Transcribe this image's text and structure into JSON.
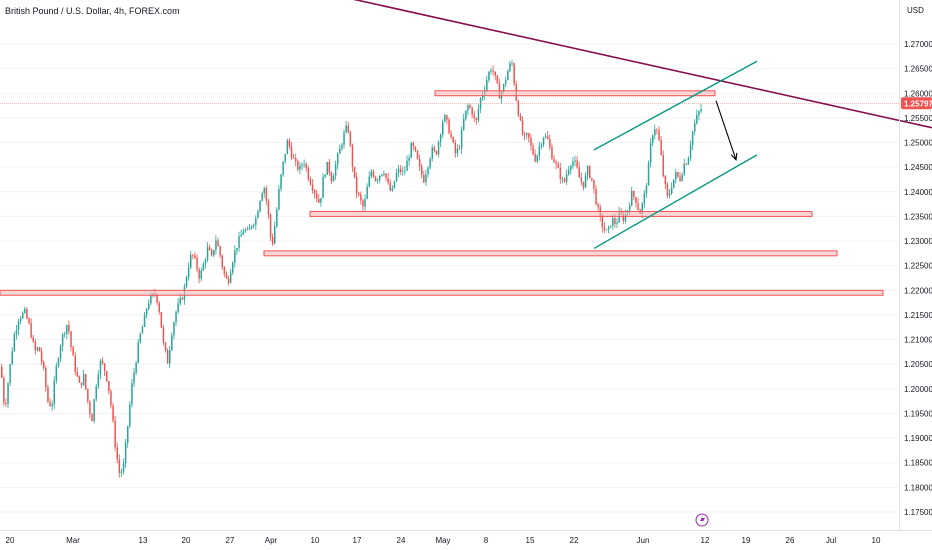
{
  "header": {
    "title": "British Pound / U.S. Dollar, 4h, FOREX.com",
    "currency": "USD"
  },
  "colors": {
    "up": "#26a69a",
    "down": "#ef5350",
    "trendline": "#880e4f",
    "channel": "#089981",
    "zone_fill": "#f7b4b4",
    "zone_stroke": "#ef5350",
    "arrow": "#000000",
    "price_tag": "#ef5350",
    "gridline": "#f0f3fa",
    "flash_icon": "#9c27b0"
  },
  "icons": {
    "event_marker": "lightning-bolt-icon"
  },
  "chart_data": {
    "type": "candlestick",
    "title": "British Pound / U.S. Dollar, 4h, FOREX.com",
    "ylabel": "USD",
    "ylim": [
      1.1725,
      1.2775
    ],
    "x_tick_labels": [
      "20",
      "Mar",
      "13",
      "20",
      "27",
      "Apr",
      "10",
      "17",
      "24",
      "May",
      "8",
      "15",
      "22",
      "Jun",
      "12",
      "19",
      "26",
      "Jul",
      "10"
    ],
    "y_tick_labels": [
      "1.27000",
      "1.26500",
      "1.26000",
      "1.25500",
      "1.25000",
      "1.24500",
      "1.24000",
      "1.23500",
      "1.23000",
      "1.22500",
      "1.22000",
      "1.21500",
      "1.21000",
      "1.20500",
      "1.20000",
      "1.19500",
      "1.19000",
      "1.18500",
      "1.18000",
      "1.17500"
    ],
    "y_ticks": [
      1.27,
      1.265,
      1.26,
      1.255,
      1.25,
      1.245,
      1.24,
      1.235,
      1.23,
      1.225,
      1.22,
      1.215,
      1.21,
      1.205,
      1.2,
      1.195,
      1.19,
      1.185,
      1.18,
      1.175
    ],
    "current_price": "1.25797",
    "close_path": [
      [
        0,
        1.2045
      ],
      [
        4,
        1.1955
      ],
      [
        8,
        1.2025
      ],
      [
        13,
        1.2105
      ],
      [
        18,
        1.2145
      ],
      [
        24,
        1.2155
      ],
      [
        29,
        1.2125
      ],
      [
        34,
        1.2075
      ],
      [
        38,
        1.2085
      ],
      [
        43,
        1.2035
      ],
      [
        47,
        1.1975
      ],
      [
        51,
        1.1965
      ],
      [
        55,
        1.2035
      ],
      [
        59,
        1.2085
      ],
      [
        63,
        1.2115
      ],
      [
        67,
        1.2135
      ],
      [
        71,
        1.2075
      ],
      [
        75,
        1.2035
      ],
      [
        79,
        1.2005
      ],
      [
        83,
        1.2025
      ],
      [
        87,
        1.1975
      ],
      [
        91,
        1.1935
      ],
      [
        95,
        1.2005
      ],
      [
        99,
        1.2055
      ],
      [
        103,
        1.2045
      ],
      [
        107,
        1.2015
      ],
      [
        111,
        1.1955
      ],
      [
        115,
        1.1875
      ],
      [
        119,
        1.1825
      ],
      [
        123,
        1.1845
      ],
      [
        127,
        1.1925
      ],
      [
        131,
        1.2005
      ],
      [
        135,
        1.2055
      ],
      [
        139,
        1.2105
      ],
      [
        143,
        1.2135
      ],
      [
        147,
        1.2175
      ],
      [
        151,
        1.2185
      ],
      [
        155,
        1.2195
      ],
      [
        159,
        1.2155
      ],
      [
        163,
        1.2085
      ],
      [
        167,
        1.2055
      ],
      [
        171,
        1.2115
      ],
      [
        175,
        1.2155
      ],
      [
        179,
        1.2175
      ],
      [
        183,
        1.2195
      ],
      [
        187,
        1.2245
      ],
      [
        191,
        1.2275
      ],
      [
        195,
        1.2255
      ],
      [
        199,
        1.2225
      ],
      [
        203,
        1.2255
      ],
      [
        207,
        1.2285
      ],
      [
        211,
        1.2265
      ],
      [
        215,
        1.2305
      ],
      [
        219,
        1.2275
      ],
      [
        223,
        1.2235
      ],
      [
        227,
        1.2215
      ],
      [
        231,
        1.2255
      ],
      [
        235,
        1.2285
      ],
      [
        239,
        1.2305
      ],
      [
        243,
        1.2325
      ],
      [
        247,
        1.2315
      ],
      [
        251,
        1.2335
      ],
      [
        255,
        1.2345
      ],
      [
        259,
        1.2385
      ],
      [
        263,
        1.2415
      ],
      [
        267,
        1.2365
      ],
      [
        271,
        1.2285
      ],
      [
        275,
        1.2345
      ],
      [
        279,
        1.2415
      ],
      [
        283,
        1.2465
      ],
      [
        287,
        1.2505
      ],
      [
        291,
        1.2475
      ],
      [
        295,
        1.2455
      ],
      [
        299,
        1.2445
      ],
      [
        303,
        1.2465
      ],
      [
        307,
        1.2435
      ],
      [
        311,
        1.2415
      ],
      [
        315,
        1.2395
      ],
      [
        319,
        1.2375
      ],
      [
        323,
        1.2435
      ],
      [
        327,
        1.2455
      ],
      [
        331,
        1.2425
      ],
      [
        335,
        1.2455
      ],
      [
        339,
        1.2485
      ],
      [
        343,
        1.2515
      ],
      [
        347,
        1.2535
      ],
      [
        351,
        1.2465
      ],
      [
        355,
        1.2405
      ],
      [
        359,
        1.2385
      ],
      [
        363,
        1.2365
      ],
      [
        367,
        1.2415
      ],
      [
        371,
        1.2445
      ],
      [
        375,
        1.2425
      ],
      [
        379,
        1.2435
      ],
      [
        383,
        1.2445
      ],
      [
        387,
        1.2415
      ],
      [
        391,
        1.2395
      ],
      [
        395,
        1.2435
      ],
      [
        399,
        1.2445
      ],
      [
        403,
        1.2435
      ],
      [
        407,
        1.2465
      ],
      [
        411,
        1.2495
      ],
      [
        415,
        1.2475
      ],
      [
        419,
        1.2445
      ],
      [
        423,
        1.2425
      ],
      [
        427,
        1.2455
      ],
      [
        431,
        1.2485
      ],
      [
        435,
        1.2475
      ],
      [
        439,
        1.2515
      ],
      [
        443,
        1.2555
      ],
      [
        447,
        1.2535
      ],
      [
        451,
        1.2505
      ],
      [
        455,
        1.2475
      ],
      [
        459,
        1.2495
      ],
      [
        463,
        1.2545
      ],
      [
        467,
        1.2575
      ],
      [
        471,
        1.2565
      ],
      [
        475,
        1.2535
      ],
      [
        479,
        1.2585
      ],
      [
        483,
        1.2605
      ],
      [
        487,
        1.2635
      ],
      [
        491,
        1.2655
      ],
      [
        495,
        1.2625
      ],
      [
        499,
        1.2595
      ],
      [
        503,
        1.2615
      ],
      [
        507,
        1.2645
      ],
      [
        511,
        1.2665
      ],
      [
        515,
        1.2595
      ],
      [
        519,
        1.2545
      ],
      [
        523,
        1.2505
      ],
      [
        527,
        1.2515
      ],
      [
        531,
        1.2485
      ],
      [
        535,
        1.2465
      ],
      [
        539,
        1.2495
      ],
      [
        543,
        1.2515
      ],
      [
        547,
        1.2505
      ],
      [
        551,
        1.2475
      ],
      [
        555,
        1.2455
      ],
      [
        559,
        1.2435
      ],
      [
        563,
        1.2415
      ],
      [
        567,
        1.2445
      ],
      [
        571,
        1.2465
      ],
      [
        575,
        1.2455
      ],
      [
        579,
        1.2425
      ],
      [
        583,
        1.2415
      ],
      [
        587,
        1.2445
      ],
      [
        591,
        1.2425
      ],
      [
        595,
        1.2385
      ],
      [
        599,
        1.2345
      ],
      [
        603,
        1.2325
      ],
      [
        607,
        1.2315
      ],
      [
        611,
        1.2345
      ],
      [
        615,
        1.2335
      ],
      [
        619,
        1.2355
      ],
      [
        623,
        1.2345
      ],
      [
        627,
        1.2365
      ],
      [
        631,
        1.2395
      ],
      [
        635,
        1.2385
      ],
      [
        639,
        1.2355
      ],
      [
        643,
        1.2385
      ],
      [
        647,
        1.2435
      ],
      [
        651,
        1.2515
      ],
      [
        655,
        1.2535
      ],
      [
        659,
        1.2495
      ],
      [
        663,
        1.2425
      ],
      [
        667,
        1.2385
      ],
      [
        671,
        1.2415
      ],
      [
        675,
        1.2435
      ],
      [
        679,
        1.2425
      ],
      [
        683,
        1.2455
      ],
      [
        687,
        1.2465
      ],
      [
        691,
        1.2515
      ],
      [
        695,
        1.2545
      ],
      [
        699,
        1.2565
      ],
      [
        703,
        1.2575
      ]
    ],
    "trendline": [
      [
        200,
        1.286
      ],
      [
        932,
        1.253
      ]
    ],
    "channel_upper": [
      [
        594,
        1.2485
      ],
      [
        757,
        1.2665
      ]
    ],
    "channel_lower": [
      [
        594,
        1.2285
      ],
      [
        757,
        1.2475
      ]
    ],
    "arrow": {
      "from": [
        716,
        1.2585
      ],
      "to": [
        736,
        1.2465
      ]
    },
    "zones": [
      {
        "x1": 435,
        "x2": 715,
        "y1": 1.2595,
        "y2": 1.2605
      },
      {
        "x1": 310,
        "x2": 812,
        "y1": 1.235,
        "y2": 1.236
      },
      {
        "x1": 264,
        "x2": 837,
        "y1": 1.227,
        "y2": 1.228
      },
      {
        "x1": 0,
        "x2": 883,
        "y1": 1.219,
        "y2": 1.22
      }
    ]
  }
}
